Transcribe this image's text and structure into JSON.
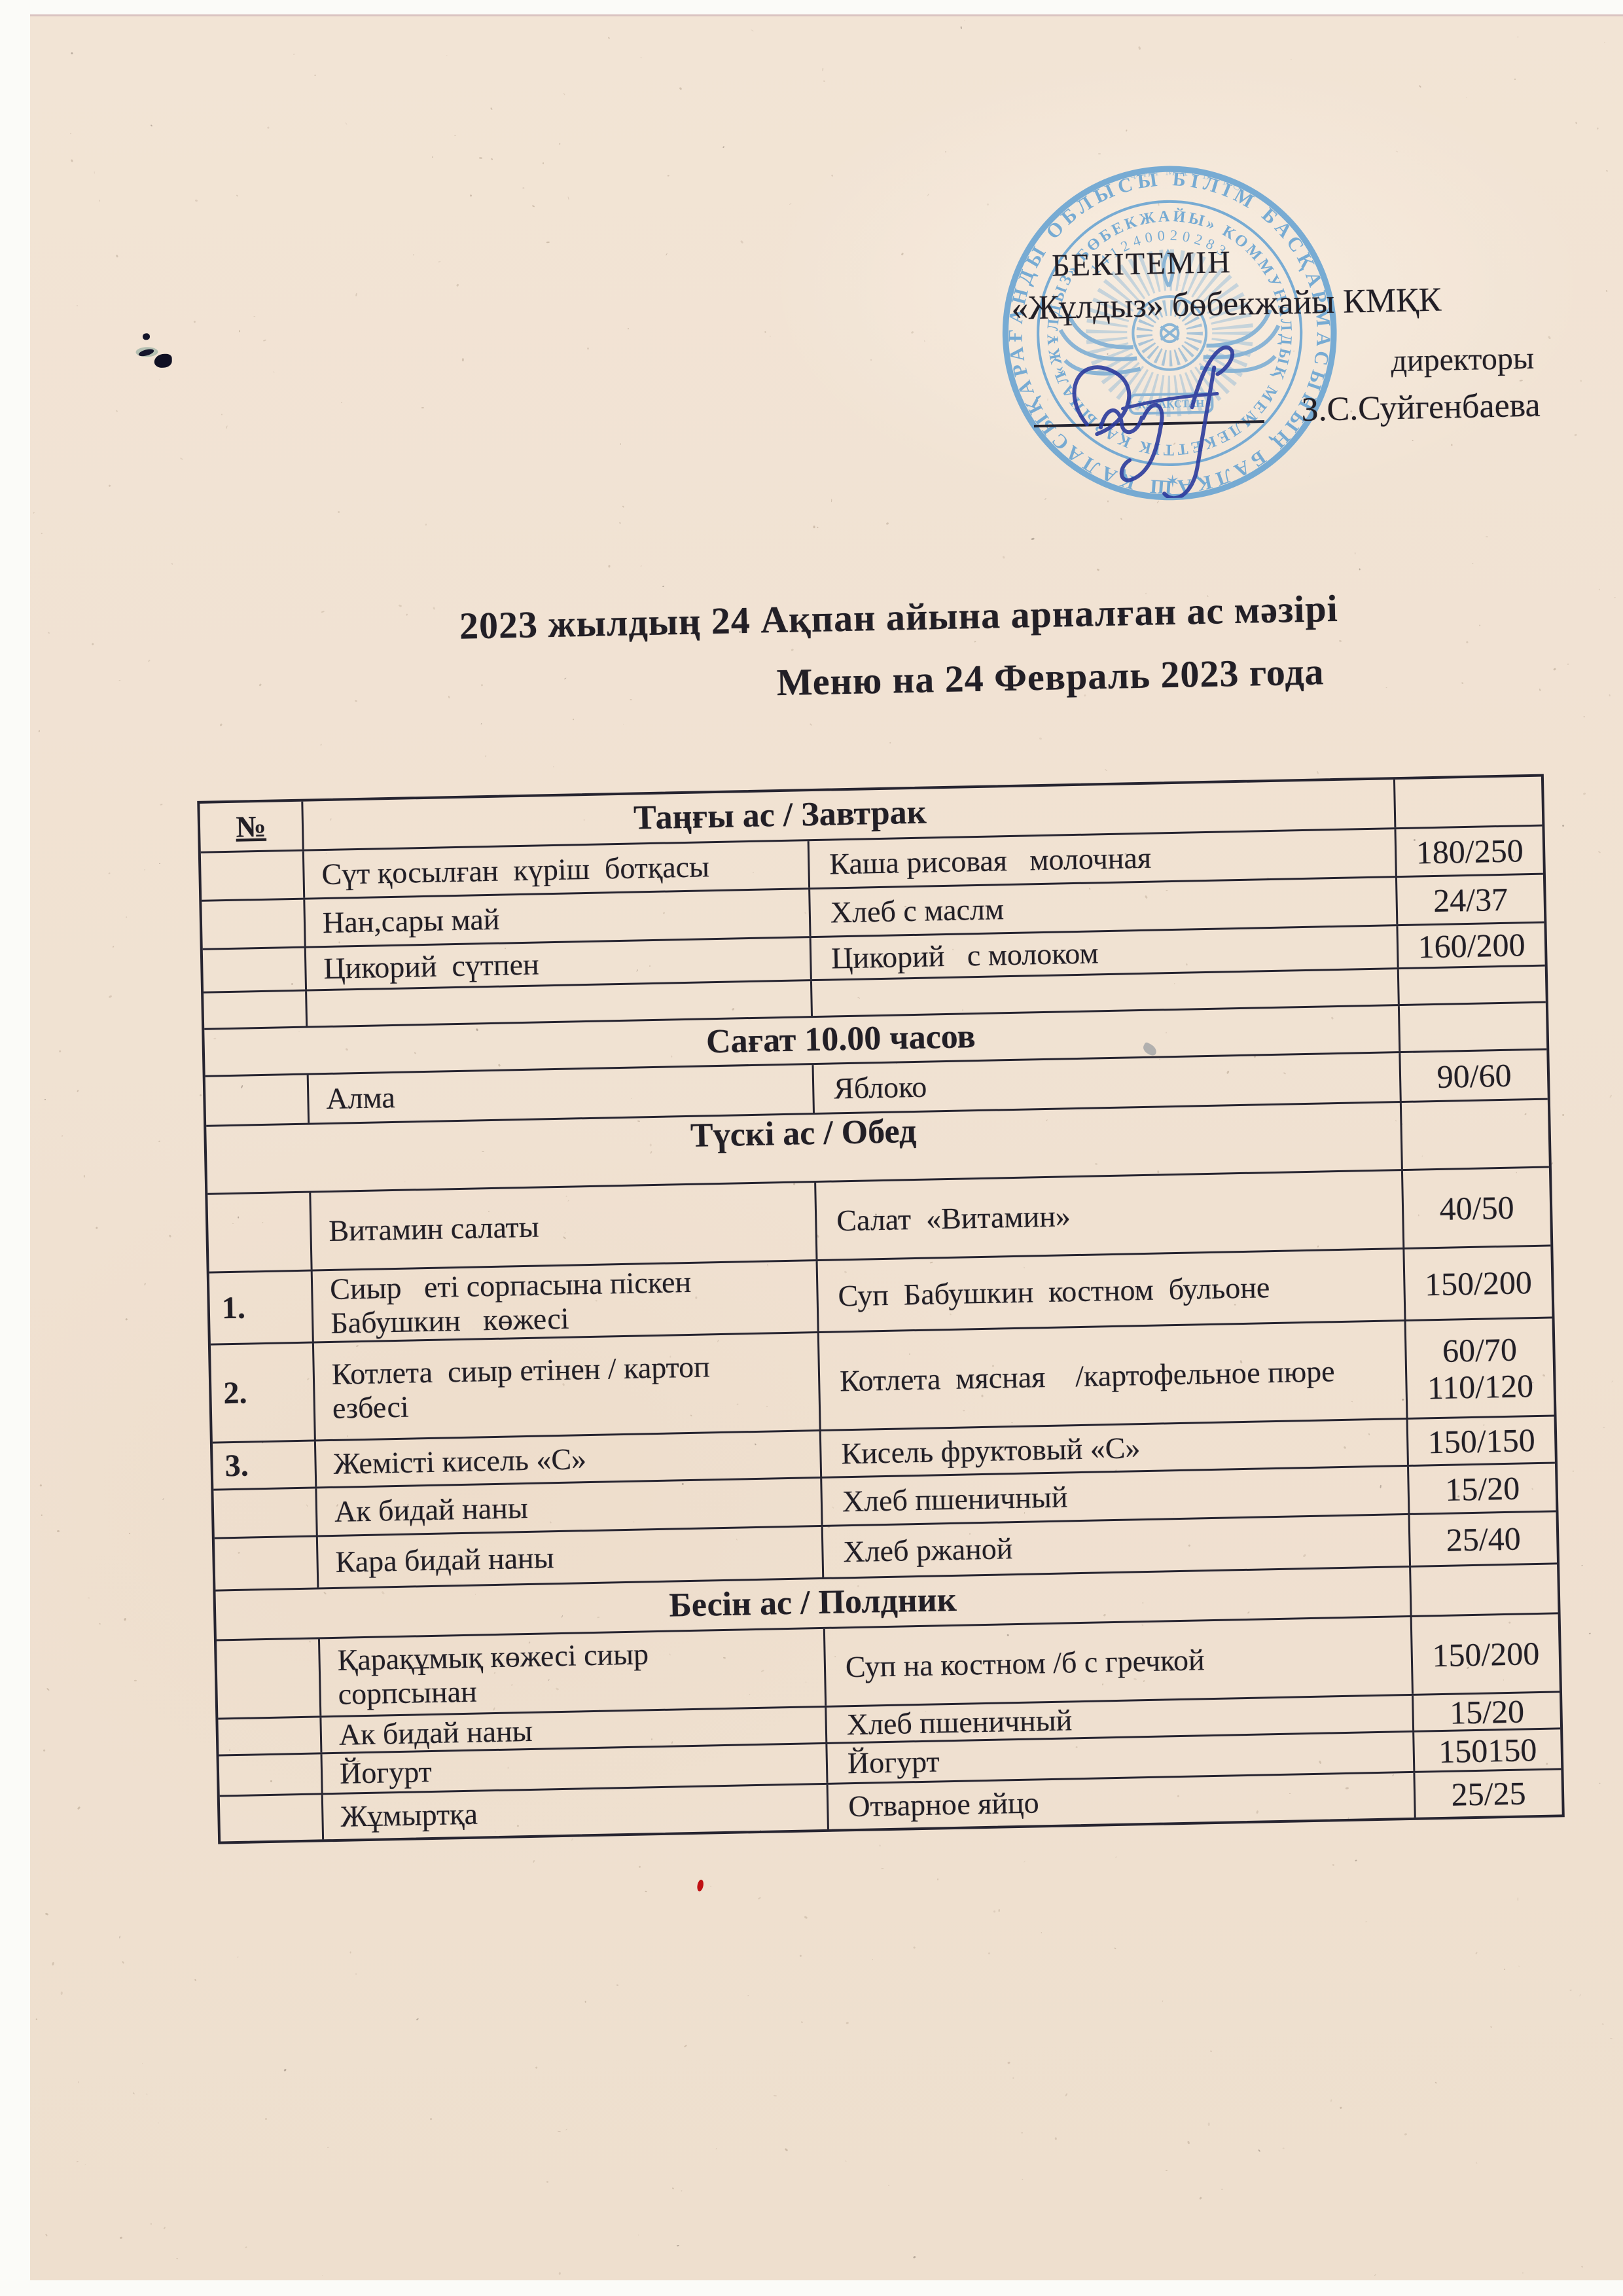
{
  "colors": {
    "paper": "#f1e3d4",
    "ink": "#221f26",
    "stamp_blue": "#5c9ed2",
    "signature_blue": "#2c3a9d",
    "red_mark": "#c01114"
  },
  "approval": {
    "approve_word": "БЕКІТЕМІН",
    "organization": "«Жұлдыз» бөбекжайы КМҚК",
    "position": "директоры",
    "signatory": "З.С.Суйгенбаева"
  },
  "stamp": {
    "outer_ring_text": "ҚАРАҒАНДЫ ОБЛЫСЫ БІЛІМ БАСҚАРМАСЫНЫҢ БАЛҚАШ ҚАЛАСЫ БІЛІМ БӨЛІМІНІҢ",
    "inner_ring_text": "«ЖҰЛДЫЗ» БӨБЕКЖАЙЫ» КОММУНАЛДЫҚ МЕМЛЕКЕТТІК ҚАЗЫНАЛЫҚ КӘСІПОРНЫ",
    "registration_number": "141240020283",
    "faint_ring_text": "ФИРМАСЫ  БСН",
    "banner_text": "ҚАЗАҚСТАН",
    "star_separator": "✶"
  },
  "title": {
    "line_kk": "2023  жылдың 24 Ақпан айына арналған ас мәзірі",
    "line_ru": "Меню на 24 Февраль 2023 года"
  },
  "menu_table": {
    "number_header": "№",
    "rows": [
      {
        "type": "header",
        "no": "№",
        "label": "Таңғы ас / Завтрак",
        "portion": ""
      },
      {
        "type": "item",
        "no": "",
        "kk": "Сүт қосылған  күріш  ботқасы",
        "ru": "Каша рисовая   молочная",
        "portion": "180/250"
      },
      {
        "type": "item",
        "no": "",
        "kk": "Нан,сары май",
        "ru": "Хлеб с маслм",
        "portion": "24/37"
      },
      {
        "type": "item",
        "no": "",
        "kk": "Цикорий  сүтпен",
        "ru": "Цикорий   с молоком",
        "portion": "160/200"
      },
      {
        "type": "empty",
        "no": "",
        "kk": "",
        "ru": "",
        "portion": ""
      },
      {
        "type": "section",
        "label": "Сағат 10.00 часов",
        "portion": ""
      },
      {
        "type": "item",
        "no": "",
        "kk": "Алма",
        "ru": "Яблоко",
        "portion": "90/60"
      },
      {
        "type": "section",
        "label": "Түскі ас / Обед",
        "portion": ""
      },
      {
        "type": "item",
        "no": "",
        "kk": "Витамин салаты",
        "ru": "Салат  «Витамин»",
        "portion": "40/50"
      },
      {
        "type": "item",
        "no": "1.",
        "kk": "Сиыр   еті сорпасына піскен\nБабушкин   көжесі",
        "ru": "Суп  Бабушкин  костном  бульоне",
        "portion": "150/200"
      },
      {
        "type": "item",
        "no": "2.",
        "kk": "Котлета  сиыр етінен / картоп\nезбесі",
        "ru": "Котлета  мясная    /картофельное пюре",
        "portion": "60/70\n110/120"
      },
      {
        "type": "item",
        "no": "3.",
        "kk": "Жемісті кисель «С»",
        "ru": "Кисель фруктовый «С»",
        "portion": "150/150"
      },
      {
        "type": "item",
        "no": "",
        "kk": "Ак бидай наны",
        "ru": "Хлеб пшеничный",
        "portion": "15/20"
      },
      {
        "type": "item",
        "no": "",
        "kk": "Кара бидай наны",
        "ru": "Хлеб ржаной",
        "portion": "25/40"
      },
      {
        "type": "section",
        "label": "Бесін ас / Полдник",
        "portion": ""
      },
      {
        "type": "item",
        "no": "",
        "kk": "Қарақұмық көжесі сиыр\nсорпсынан",
        "ru": "Суп на костном /б с гречкой",
        "portion": "150/200"
      },
      {
        "type": "item",
        "no": "",
        "kk": "Ак бидай наны",
        "ru": "Хлеб пшеничный",
        "portion": "15/20"
      },
      {
        "type": "item",
        "no": "",
        "kk": "Йогурт",
        "ru": "Йогурт",
        "portion": "150150"
      },
      {
        "type": "item",
        "no": "",
        "kk": "Жұмыртқа",
        "ru": "Отварное яйцо",
        "portion": "25/25"
      }
    ]
  }
}
